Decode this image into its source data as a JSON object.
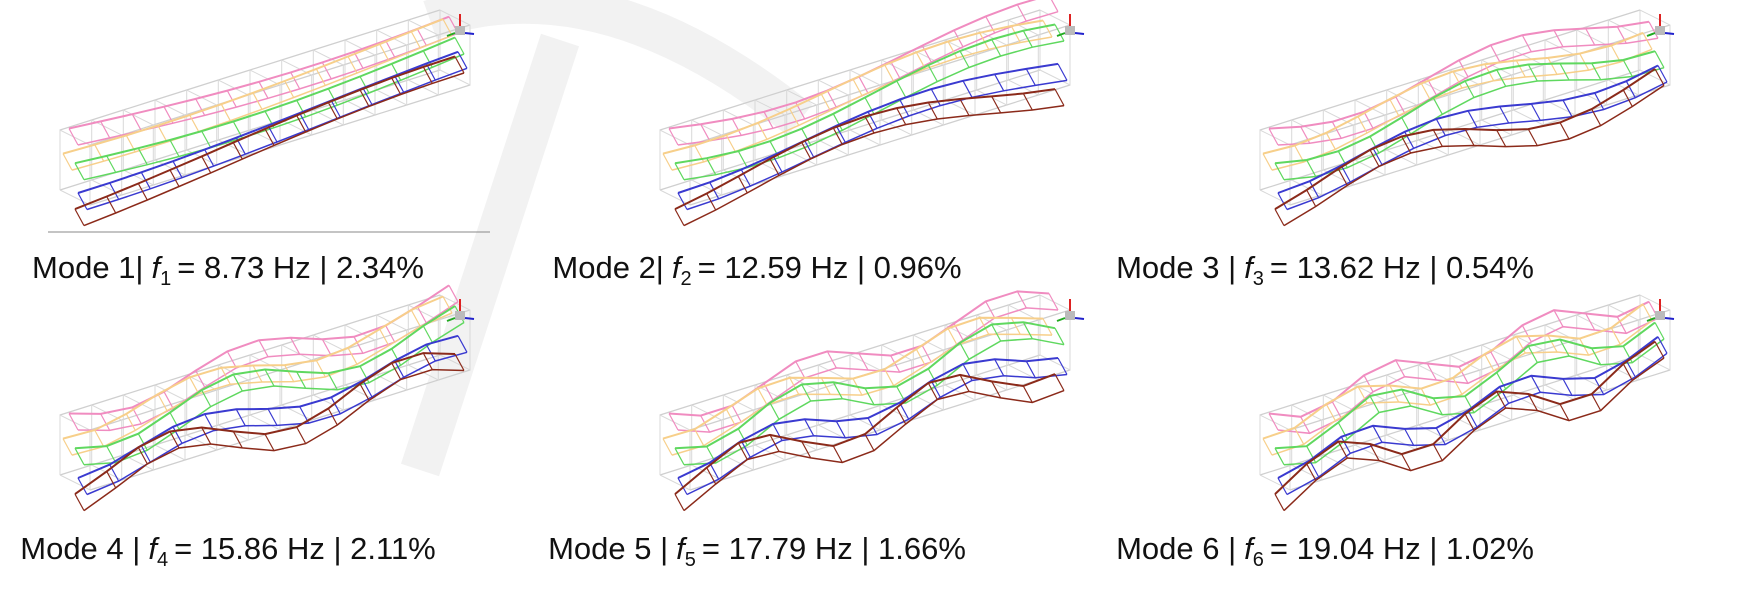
{
  "modes": [
    {
      "prefix": "Mode 1|",
      "symbol": "f",
      "sub": "1",
      "rest": "= 8.73 Hz | 2.34%"
    },
    {
      "prefix": "Mode 2|",
      "symbol": "f",
      "sub": "2",
      "rest": "= 12.59 Hz | 0.96%"
    },
    {
      "prefix": "Mode 3 |",
      "symbol": "f",
      "sub": "3",
      "rest": "= 13.62 Hz | 0.54%"
    },
    {
      "prefix": "Mode 4 |",
      "symbol": "f",
      "sub": "4",
      "rest": "= 15.86 Hz | 2.11%"
    },
    {
      "prefix": "Mode 5 |",
      "symbol": "f",
      "sub": "5",
      "rest": "= 17.79 Hz | 1.66%"
    },
    {
      "prefix": "Mode 6 |",
      "symbol": "f",
      "sub": "6",
      "rest": "= 19.04 Hz | 1.02%"
    }
  ]
}
